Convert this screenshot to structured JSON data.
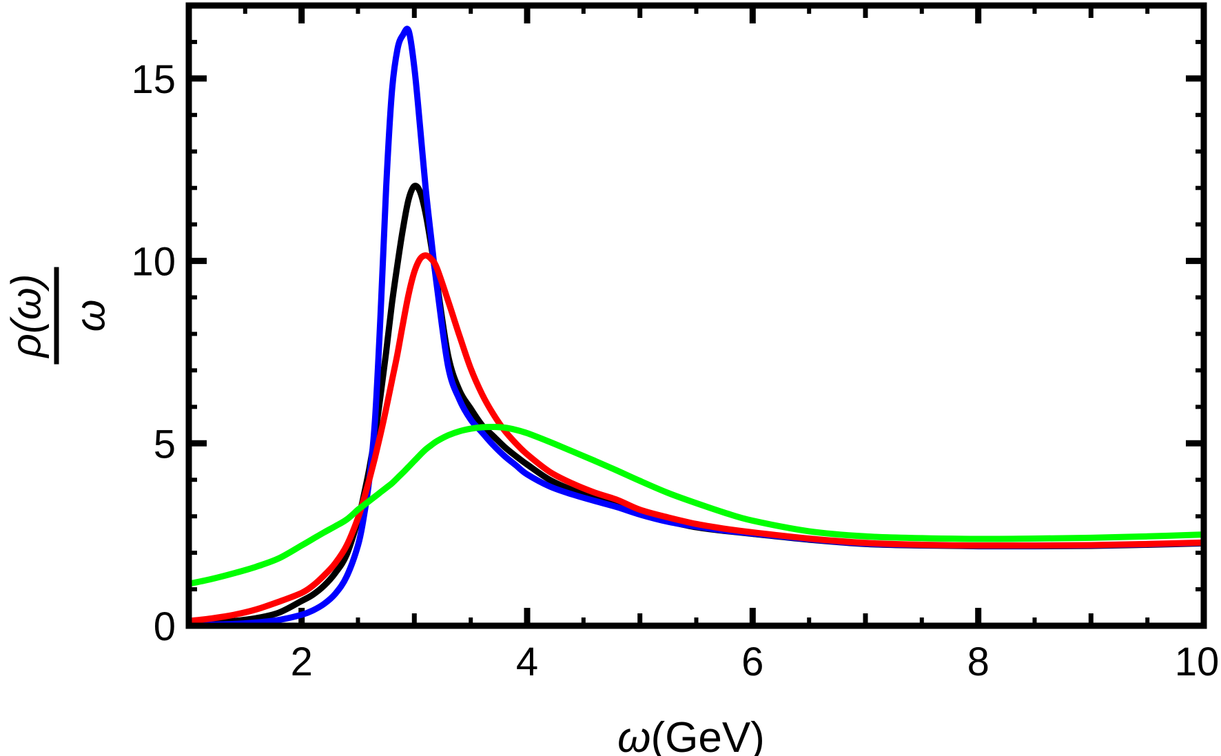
{
  "figure": {
    "background": "#ffffff",
    "xlabel": {
      "symbol": "ω",
      "rest": "(GeV)"
    },
    "ylabel": {
      "numerator": "ρ(ω)",
      "denominator": "ω"
    }
  },
  "chart_data": {
    "type": "line",
    "title": "",
    "xlabel": "ω(GeV)",
    "ylabel": "ρ(ω)/ω",
    "xlim": [
      1,
      10
    ],
    "ylim": [
      0,
      17
    ],
    "grid": false,
    "legend": "none",
    "frame": true,
    "frame_color": "#000000",
    "background": "#ffffff",
    "x_ticks": {
      "major": [
        2,
        4,
        6,
        8,
        10
      ],
      "labels": [
        "2",
        "4",
        "6",
        "8",
        "10"
      ],
      "mid": [
        3,
        5,
        7,
        9
      ],
      "minor": [
        1.5,
        2.5,
        3.5,
        4.5,
        5.5,
        6.5,
        7.5,
        8.5,
        9.5
      ]
    },
    "y_ticks": {
      "major": [
        0,
        5,
        10,
        15
      ],
      "labels": [
        "0",
        "5",
        "10",
        "15"
      ],
      "mid": [],
      "minor": [
        1,
        2,
        3,
        4,
        6,
        7,
        8,
        9,
        11,
        12,
        13,
        14,
        16
      ]
    },
    "x": [
      1.0,
      1.2,
      1.4,
      1.6,
      1.8,
      2.0,
      2.1,
      2.2,
      2.3,
      2.4,
      2.5,
      2.55,
      2.6,
      2.65,
      2.7,
      2.75,
      2.8,
      2.85,
      2.9,
      2.95,
      3.0,
      3.05,
      3.1,
      3.15,
      3.2,
      3.3,
      3.4,
      3.5,
      3.6,
      3.7,
      3.8,
      3.9,
      4.0,
      4.2,
      4.4,
      4.6,
      4.8,
      5.0,
      5.25,
      5.5,
      5.75,
      6.0,
      6.5,
      7.0,
      7.5,
      8.0,
      8.5,
      9.0,
      9.5,
      10.0
    ],
    "series": [
      {
        "name": "black",
        "color": "#000000",
        "peak": {
          "x": 3.0,
          "y": 12.05
        },
        "values": [
          0.05,
          0.08,
          0.13,
          0.21,
          0.36,
          0.68,
          0.85,
          1.1,
          1.45,
          1.95,
          2.9,
          3.55,
          4.3,
          5.2,
          6.3,
          7.5,
          8.8,
          9.9,
          10.9,
          11.7,
          12.05,
          11.9,
          11.3,
          10.4,
          9.4,
          7.4,
          6.45,
          5.95,
          5.5,
          5.2,
          4.9,
          4.65,
          4.42,
          4.0,
          3.72,
          3.5,
          3.3,
          3.05,
          2.86,
          2.7,
          2.6,
          2.52,
          2.36,
          2.24,
          2.2,
          2.18,
          2.18,
          2.19,
          2.22,
          2.26
        ]
      },
      {
        "name": "blue",
        "color": "#0000ff",
        "peak": {
          "x": 2.95,
          "y": 16.3
        },
        "values": [
          0.02,
          0.03,
          0.05,
          0.09,
          0.16,
          0.3,
          0.42,
          0.6,
          0.88,
          1.35,
          2.2,
          2.95,
          4.0,
          5.6,
          8.5,
          12.0,
          14.6,
          15.8,
          16.2,
          16.3,
          15.3,
          13.7,
          12.0,
          10.6,
          9.3,
          7.1,
          6.2,
          5.65,
          5.3,
          4.95,
          4.65,
          4.4,
          4.15,
          3.82,
          3.6,
          3.42,
          3.25,
          3.05,
          2.85,
          2.72,
          2.61,
          2.53,
          2.37,
          2.25,
          2.21,
          2.19,
          2.19,
          2.2,
          2.23,
          2.27
        ]
      },
      {
        "name": "red",
        "color": "#ff0000",
        "peak": {
          "x": 3.1,
          "y": 10.15
        },
        "values": [
          0.13,
          0.2,
          0.3,
          0.45,
          0.66,
          0.9,
          1.1,
          1.38,
          1.72,
          2.2,
          2.95,
          3.45,
          4.0,
          4.6,
          5.25,
          5.95,
          6.7,
          7.45,
          8.3,
          9.1,
          9.7,
          10.05,
          10.15,
          10.05,
          9.8,
          8.9,
          7.95,
          7.05,
          6.35,
          5.8,
          5.35,
          5.0,
          4.7,
          4.22,
          3.9,
          3.65,
          3.45,
          3.18,
          2.97,
          2.79,
          2.66,
          2.56,
          2.39,
          2.27,
          2.22,
          2.2,
          2.2,
          2.21,
          2.24,
          2.28
        ]
      },
      {
        "name": "green",
        "color": "#00ff00",
        "peak": {
          "x": 3.7,
          "y": 5.45
        },
        "values": [
          1.15,
          1.28,
          1.44,
          1.62,
          1.85,
          2.2,
          2.38,
          2.56,
          2.73,
          2.91,
          3.18,
          3.3,
          3.42,
          3.54,
          3.66,
          3.78,
          3.9,
          4.05,
          4.2,
          4.36,
          4.52,
          4.68,
          4.83,
          4.95,
          5.06,
          5.22,
          5.33,
          5.4,
          5.44,
          5.45,
          5.43,
          5.37,
          5.28,
          5.04,
          4.78,
          4.52,
          4.25,
          3.97,
          3.64,
          3.36,
          3.1,
          2.88,
          2.59,
          2.45,
          2.4,
          2.38,
          2.39,
          2.41,
          2.45,
          2.5
        ]
      }
    ]
  }
}
